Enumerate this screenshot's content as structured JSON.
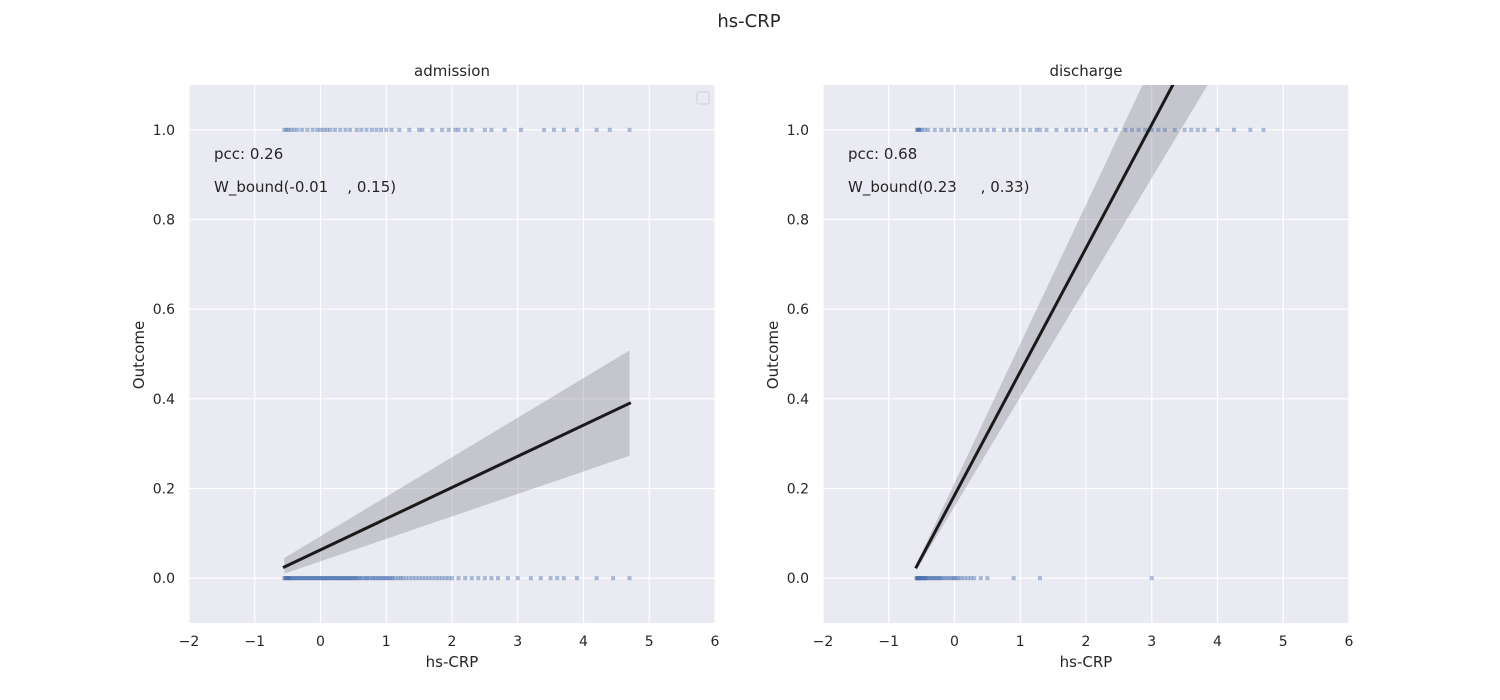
{
  "figure": {
    "title": "hs-CRP"
  },
  "colors": {
    "background": "#EAEAF2",
    "grid": "#FFFFFF",
    "points": "#4C72B0",
    "regression_line": "#1A1A1A",
    "confidence_band": "#9A9AA0",
    "text": "#262626"
  },
  "chart_data": [
    {
      "type": "scatter",
      "title": "admission",
      "xlabel": "hs-CRP",
      "ylabel": "Outcome",
      "xlim": [
        -2,
        6
      ],
      "ylim": [
        -0.1,
        1.1
      ],
      "xticks": [
        -2,
        -1,
        0,
        1,
        2,
        3,
        4,
        5,
        6
      ],
      "xtick_labels": [
        "−2",
        "−1",
        "0",
        "1",
        "2",
        "3",
        "4",
        "5",
        "6"
      ],
      "yticks": [
        0.0,
        0.2,
        0.4,
        0.6,
        0.8,
        1.0
      ],
      "ytick_labels": [
        "0.0",
        "0.2",
        "0.4",
        "0.6",
        "0.8",
        "1.0"
      ],
      "grid": true,
      "legend": "top-right (empty)",
      "annotations": [
        "pcc: 0.26",
        "W_bound(-0.01    , 0.15)"
      ],
      "points_y1": [
        -0.55,
        -0.52,
        -0.49,
        -0.45,
        -0.4,
        -0.35,
        -0.28,
        -0.2,
        -0.12,
        -0.05,
        0.0,
        0.05,
        0.1,
        0.15,
        0.22,
        0.3,
        0.38,
        0.45,
        0.55,
        0.62,
        0.7,
        0.78,
        0.85,
        0.92,
        1.0,
        1.08,
        1.2,
        1.35,
        1.5,
        1.55,
        1.7,
        1.85,
        1.95,
        2.05,
        2.1,
        2.2,
        2.3,
        2.5,
        2.6,
        2.8,
        3.05,
        3.4,
        3.55,
        3.7,
        3.9,
        4.2,
        4.4,
        4.7
      ],
      "points_y0": [
        -0.55,
        -0.54,
        -0.53,
        -0.52,
        -0.51,
        -0.5,
        -0.49,
        -0.48,
        -0.47,
        -0.46,
        -0.45,
        -0.43,
        -0.41,
        -0.4,
        -0.38,
        -0.36,
        -0.35,
        -0.33,
        -0.31,
        -0.3,
        -0.28,
        -0.26,
        -0.25,
        -0.23,
        -0.21,
        -0.2,
        -0.18,
        -0.16,
        -0.15,
        -0.13,
        -0.11,
        -0.1,
        -0.08,
        -0.06,
        -0.05,
        -0.03,
        -0.01,
        0.0,
        0.02,
        0.04,
        0.05,
        0.07,
        0.09,
        0.1,
        0.12,
        0.14,
        0.15,
        0.17,
        0.19,
        0.2,
        0.22,
        0.24,
        0.25,
        0.27,
        0.29,
        0.3,
        0.32,
        0.34,
        0.35,
        0.37,
        0.39,
        0.4,
        0.42,
        0.44,
        0.45,
        0.47,
        0.49,
        0.5,
        0.52,
        0.54,
        0.55,
        0.58,
        0.6,
        0.62,
        0.65,
        0.68,
        0.7,
        0.72,
        0.75,
        0.78,
        0.8,
        0.83,
        0.85,
        0.88,
        0.9,
        0.93,
        0.95,
        0.98,
        1.0,
        1.03,
        1.05,
        1.08,
        1.1,
        1.14,
        1.18,
        1.22,
        1.25,
        1.3,
        1.35,
        1.4,
        1.45,
        1.5,
        1.55,
        1.6,
        1.65,
        1.7,
        1.75,
        1.8,
        1.85,
        1.9,
        1.95,
        2.0,
        2.1,
        2.2,
        2.3,
        2.4,
        2.5,
        2.6,
        2.7,
        2.85,
        3.0,
        3.2,
        3.35,
        3.5,
        3.6,
        3.7,
        3.9,
        4.2,
        4.45,
        4.7
      ],
      "regression": {
        "x": [
          -0.55,
          4.7
        ],
        "y": [
          0.025,
          0.39
        ]
      },
      "ci_band": {
        "x": [
          -0.55,
          4.7
        ],
        "lower": [
          0.01,
          0.273
        ],
        "upper": [
          0.045,
          0.508
        ]
      }
    },
    {
      "type": "scatter",
      "title": "discharge",
      "xlabel": "hs-CRP",
      "ylabel": "Outcome",
      "xlim": [
        -2,
        6
      ],
      "ylim": [
        -0.1,
        1.1
      ],
      "xticks": [
        -2,
        -1,
        0,
        1,
        2,
        3,
        4,
        5,
        6
      ],
      "xtick_labels": [
        "−2",
        "−1",
        "0",
        "1",
        "2",
        "3",
        "4",
        "5",
        "6"
      ],
      "yticks": [
        0.0,
        0.2,
        0.4,
        0.6,
        0.8,
        1.0
      ],
      "ytick_labels": [
        "0.0",
        "0.2",
        "0.4",
        "0.6",
        "0.8",
        "1.0"
      ],
      "grid": true,
      "annotations": [
        "pcc: 0.68",
        "W_bound(0.23     , 0.33)"
      ],
      "points_y1": [
        -0.57,
        -0.56,
        -0.55,
        -0.54,
        -0.52,
        -0.5,
        -0.45,
        -0.4,
        -0.3,
        -0.2,
        -0.1,
        0.0,
        0.1,
        0.2,
        0.3,
        0.4,
        0.5,
        0.6,
        0.75,
        0.85,
        0.95,
        1.05,
        1.15,
        1.25,
        1.3,
        1.4,
        1.55,
        1.7,
        1.8,
        1.9,
        2.0,
        2.15,
        2.3,
        2.45,
        2.6,
        2.7,
        2.8,
        2.9,
        3.0,
        3.1,
        3.2,
        3.35,
        3.5,
        3.6,
        3.7,
        3.8,
        4.0,
        4.25,
        4.5,
        4.7
      ],
      "points_y0": [
        -0.58,
        -0.57,
        -0.565,
        -0.56,
        -0.555,
        -0.55,
        -0.545,
        -0.54,
        -0.535,
        -0.53,
        -0.52,
        -0.51,
        -0.5,
        -0.49,
        -0.48,
        -0.47,
        -0.46,
        -0.45,
        -0.44,
        -0.43,
        -0.42,
        -0.4,
        -0.38,
        -0.36,
        -0.34,
        -0.32,
        -0.3,
        -0.28,
        -0.26,
        -0.24,
        -0.22,
        -0.2,
        -0.17,
        -0.14,
        -0.11,
        -0.08,
        -0.05,
        -0.02,
        0.0,
        0.03,
        0.06,
        0.1,
        0.15,
        0.2,
        0.25,
        0.3,
        0.4,
        0.5,
        0.9,
        1.3,
        3.0
      ],
      "regression": {
        "x": [
          -0.58,
          3.32
        ],
        "y": [
          0.025,
          1.1
        ]
      },
      "ci_band": {
        "x": [
          -0.58,
          3.85
        ],
        "lower": [
          0.018,
          1.1
        ],
        "upper": [
          0.032,
          1.1
        ]
      },
      "ci_band_top_x": [
        2.86,
        3.85
      ]
    }
  ]
}
